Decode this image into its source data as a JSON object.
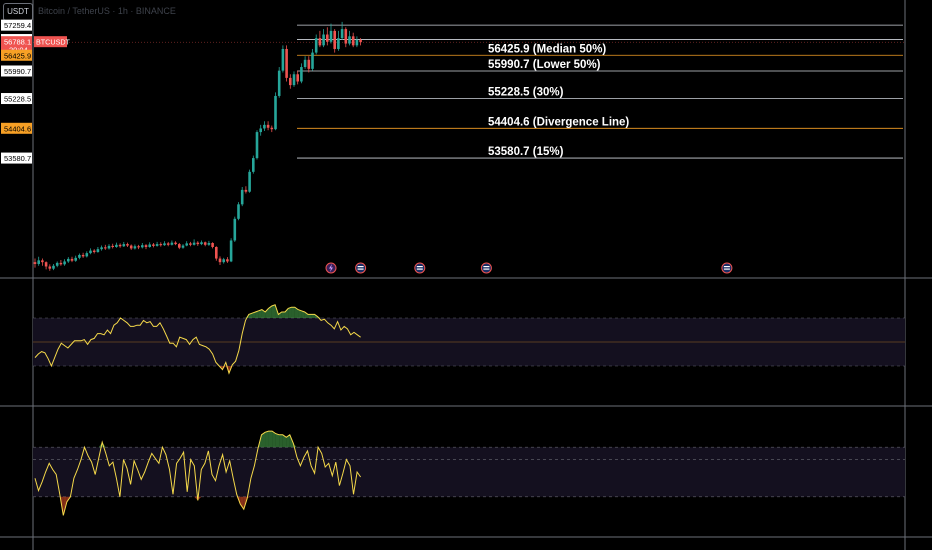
{
  "header": {
    "currency_badge": "USDT",
    "chart_title": "Bitcoin / TetherUS · 1h · BINANCE"
  },
  "colors": {
    "up": "#26a69a",
    "down": "#ef5350",
    "axis_text": "#d1d4dc",
    "frame": "#6b6f78",
    "level_white": "#d1d4dc",
    "level_orange": "#f7a025",
    "osc_line": "#f5d94a",
    "osc_high": "#4caf50",
    "osc_low": "#e0502a",
    "band": "#14101f",
    "current_price": "#ef5350"
  },
  "price_axis": {
    "labels": [
      {
        "value": 57259.4,
        "text": "57259.4",
        "style": "plain"
      },
      {
        "value": 56861.1,
        "text": "56861.1",
        "style": "plain"
      },
      {
        "value": 56788.1,
        "text": "56788.1",
        "style": "current",
        "extra": "20:04",
        "symbol": "BTCUSDT"
      },
      {
        "value": 56425.9,
        "text": "56425.9",
        "style": "orange"
      },
      {
        "value": 55990.7,
        "text": "55990.7",
        "style": "plain"
      },
      {
        "value": 55228.5,
        "text": "55228.5",
        "style": "plain"
      },
      {
        "value": 54404.6,
        "text": "54404.6",
        "style": "orange"
      },
      {
        "value": 53580.7,
        "text": "53580.7",
        "style": "plain"
      }
    ]
  },
  "levels": [
    {
      "value": 57259.4,
      "label": "",
      "color": "white"
    },
    {
      "value": 56861.1,
      "label": "",
      "color": "white"
    },
    {
      "value": 56425.9,
      "label": "56425.9 (Median 50%)",
      "color": "orange"
    },
    {
      "value": 55990.7,
      "label": "55990.7 (Lower 50%)",
      "color": "white"
    },
    {
      "value": 55228.5,
      "label": "55228.5 (30%)",
      "color": "white"
    },
    {
      "value": 54404.6,
      "label": "54404.6 (Divergence Line)",
      "color": "orange"
    },
    {
      "value": 53580.7,
      "label": "53580.7 (15%)",
      "color": "white"
    }
  ],
  "chart_data": [
    {
      "type": "candlestick",
      "ylim": [
        50400,
        57900
      ],
      "levels": [
        57259.4,
        56861.1,
        56425.9,
        55990.7,
        55228.5,
        54404.6,
        53580.7
      ],
      "candles": [
        [
          50700,
          50650,
          50800,
          50550
        ],
        [
          50650,
          50750,
          50850,
          50600
        ],
        [
          50750,
          50700,
          50800,
          50600
        ],
        [
          50700,
          50580,
          50720,
          50500
        ],
        [
          50580,
          50520,
          50640,
          50460
        ],
        [
          50520,
          50600,
          50650,
          50480
        ],
        [
          50600,
          50680,
          50720,
          50560
        ],
        [
          50680,
          50640,
          50760,
          50600
        ],
        [
          50640,
          50720,
          50780,
          50600
        ],
        [
          50720,
          50790,
          50840,
          50680
        ],
        [
          50790,
          50740,
          50850,
          50700
        ],
        [
          50740,
          50820,
          50880,
          50710
        ],
        [
          50820,
          50900,
          50940,
          50780
        ],
        [
          50900,
          50860,
          50960,
          50820
        ],
        [
          50860,
          50950,
          51000,
          50830
        ],
        [
          50950,
          51020,
          51080,
          50920
        ],
        [
          51020,
          50980,
          51060,
          50940
        ],
        [
          50980,
          51060,
          51120,
          50960
        ],
        [
          51060,
          51110,
          51160,
          51020
        ],
        [
          51110,
          51080,
          51180,
          51040
        ],
        [
          51080,
          51150,
          51200,
          51050
        ],
        [
          51150,
          51120,
          51210,
          51080
        ],
        [
          51120,
          51180,
          51240,
          51100
        ],
        [
          51180,
          51140,
          51220,
          51100
        ],
        [
          51140,
          51200,
          51260,
          51120
        ],
        [
          51200,
          51160,
          51240,
          51120
        ],
        [
          51160,
          51080,
          51190,
          51040
        ],
        [
          51080,
          51140,
          51190,
          51050
        ],
        [
          51140,
          51110,
          51180,
          51060
        ],
        [
          51110,
          51170,
          51230,
          51080
        ],
        [
          51170,
          51120,
          51200,
          51060
        ],
        [
          51120,
          51190,
          51250,
          51100
        ],
        [
          51190,
          51150,
          51230,
          51110
        ],
        [
          51150,
          51200,
          51260,
          51130
        ],
        [
          51200,
          51170,
          51250,
          51130
        ],
        [
          51170,
          51220,
          51280,
          51150
        ],
        [
          51220,
          51180,
          51260,
          51140
        ],
        [
          51180,
          51240,
          51300,
          51160
        ],
        [
          51240,
          51200,
          51280,
          51170
        ],
        [
          51200,
          51100,
          51230,
          51060
        ],
        [
          51100,
          51160,
          51200,
          51070
        ],
        [
          51160,
          51220,
          51280,
          51140
        ],
        [
          51220,
          51180,
          51260,
          51140
        ],
        [
          51180,
          51240,
          51330,
          51160
        ],
        [
          51240,
          51200,
          51280,
          51150
        ],
        [
          51200,
          51250,
          51300,
          51170
        ],
        [
          51250,
          51180,
          51270,
          51140
        ],
        [
          51180,
          51230,
          51290,
          51150
        ],
        [
          51230,
          51120,
          51250,
          51080
        ],
        [
          51120,
          50800,
          51140,
          50740
        ],
        [
          50800,
          50700,
          50860,
          50620
        ],
        [
          50700,
          50780,
          50820,
          50660
        ],
        [
          50780,
          50720,
          50840,
          50680
        ],
        [
          50720,
          51300,
          51360,
          50700
        ],
        [
          51300,
          51900,
          51960,
          51260
        ],
        [
          51900,
          52300,
          52360,
          51860
        ],
        [
          52300,
          52700,
          52780,
          52250
        ],
        [
          52700,
          52650,
          52800,
          52600
        ],
        [
          52650,
          53200,
          53260,
          52620
        ],
        [
          53200,
          53580,
          53650,
          53150
        ],
        [
          53580,
          54300,
          54350,
          53540
        ],
        [
          54300,
          54400,
          54500,
          54200
        ],
        [
          54400,
          54500,
          54600,
          54330
        ],
        [
          54500,
          54420,
          54600,
          54350
        ],
        [
          54420,
          54380,
          54480,
          54300
        ],
        [
          54380,
          55300,
          55400,
          54350
        ],
        [
          55300,
          56000,
          56100,
          55250
        ],
        [
          56000,
          56600,
          56700,
          55950
        ],
        [
          56600,
          55800,
          56700,
          55700
        ],
        [
          55800,
          55600,
          55900,
          55500
        ],
        [
          55600,
          55900,
          55980,
          55550
        ],
        [
          55900,
          55700,
          56000,
          55620
        ],
        [
          55700,
          56100,
          56200,
          55650
        ],
        [
          56100,
          56300,
          56400,
          56050
        ],
        [
          56300,
          56050,
          56400,
          55950
        ],
        [
          56050,
          56500,
          56600,
          56000
        ],
        [
          56500,
          56900,
          57000,
          56450
        ],
        [
          56900,
          56700,
          57100,
          56650
        ],
        [
          56700,
          57000,
          57150,
          56650
        ],
        [
          57000,
          56800,
          57200,
          56700
        ],
        [
          56800,
          57100,
          57300,
          56750
        ],
        [
          57100,
          56600,
          57150,
          56500
        ],
        [
          56600,
          56900,
          57100,
          56550
        ],
        [
          56900,
          57150,
          57350,
          56850
        ],
        [
          57150,
          56750,
          57200,
          56650
        ],
        [
          56750,
          56950,
          57100,
          56700
        ],
        [
          56950,
          56700,
          57050,
          56650
        ],
        [
          56700,
          56850,
          56950,
          56650
        ],
        [
          56850,
          56788,
          56900,
          56700
        ]
      ]
    },
    {
      "type": "line",
      "ylim": [
        0,
        100
      ],
      "levels": [
        70,
        50,
        30
      ],
      "values": [
        37,
        40,
        42,
        41,
        36,
        30,
        37,
        44,
        49,
        47,
        45,
        48,
        51,
        51,
        51,
        52,
        48,
        52,
        53,
        57,
        57,
        56,
        60,
        57,
        64,
        66,
        70,
        68,
        66,
        63,
        63,
        64,
        64,
        68,
        66,
        67,
        63,
        63,
        66,
        61,
        55,
        49,
        49,
        46,
        54,
        53,
        52,
        48,
        52,
        54,
        48,
        47,
        46,
        44,
        40,
        33,
        30,
        27,
        33,
        24,
        31,
        34,
        43,
        57,
        68,
        73,
        74,
        75,
        76,
        77,
        75,
        78,
        80,
        81,
        73,
        75,
        75,
        78,
        79,
        79,
        77,
        76,
        75,
        73,
        73,
        73,
        71,
        68,
        69,
        66,
        64,
        61,
        67,
        60,
        63,
        61,
        56,
        58,
        56,
        54
      ]
    },
    {
      "type": "line",
      "ylim": [
        0,
        100
      ],
      "levels": [
        70,
        60,
        30
      ],
      "values": [
        45,
        35,
        42,
        50,
        57,
        52,
        48,
        32,
        15,
        26,
        30,
        45,
        52,
        60,
        70,
        63,
        58,
        48,
        61,
        74,
        65,
        55,
        58,
        45,
        30,
        60,
        53,
        40,
        59,
        52,
        44,
        50,
        58,
        65,
        61,
        57,
        70,
        64,
        52,
        32,
        57,
        61,
        66,
        34,
        60,
        55,
        27,
        52,
        57,
        67,
        48,
        43,
        55,
        64,
        50,
        59,
        45,
        32,
        24,
        20,
        29,
        45,
        55,
        69,
        80,
        82,
        83,
        83,
        81,
        80,
        80,
        78,
        80,
        73,
        62,
        55,
        62,
        67,
        55,
        49,
        70,
        65,
        54,
        57,
        47,
        58,
        39,
        49,
        60,
        55,
        32,
        50,
        46
      ]
    }
  ],
  "event_markers": [
    {
      "bar": 80,
      "icon": "lightning-icon"
    },
    {
      "bar": 88,
      "icon": "us-flag-icon"
    },
    {
      "bar": 104,
      "icon": "us-flag-icon"
    },
    {
      "bar": 122,
      "icon": "us-flag-icon"
    },
    {
      "bar": 187,
      "icon": "us-flag-icon"
    }
  ]
}
